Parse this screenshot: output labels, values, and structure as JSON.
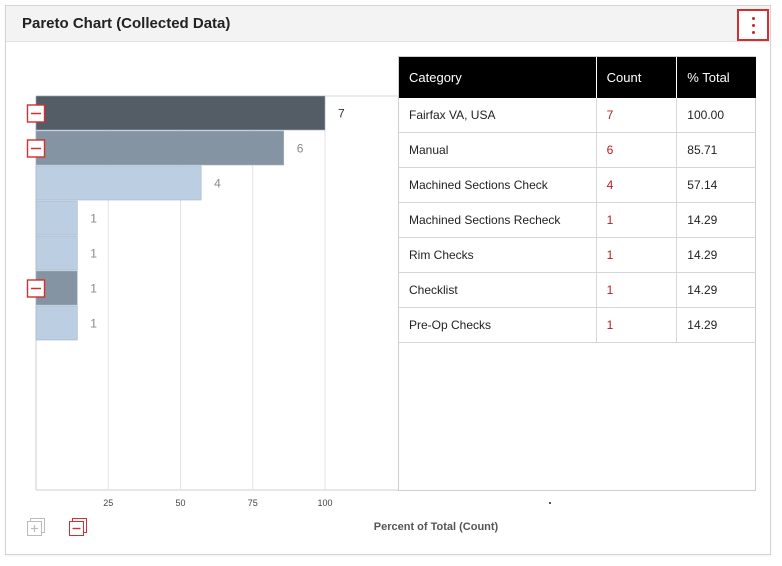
{
  "header": {
    "title": "Pareto Chart (Collected Data)",
    "menu_icon": "kebab-menu-icon"
  },
  "table": {
    "columns": [
      "Category",
      "Count",
      "% Total"
    ],
    "rows": [
      {
        "category": "Fairfax VA, USA",
        "count": "7",
        "pct": "100.00"
      },
      {
        "category": "Manual",
        "count": "6",
        "pct": "85.71"
      },
      {
        "category": "Machined Sections Check",
        "count": "4",
        "pct": "57.14"
      },
      {
        "category": "Machined Sections Recheck",
        "count": "1",
        "pct": "14.29"
      },
      {
        "category": "Rim Checks",
        "count": "1",
        "pct": "14.29"
      },
      {
        "category": "Checklist",
        "count": "1",
        "pct": "14.29"
      },
      {
        "category": "Pre-Op Checks",
        "count": "1",
        "pct": "14.29"
      }
    ]
  },
  "footer": {
    "expand_all_icon": "expand-all-icon",
    "collapse_all_icon": "collapse-all-icon"
  },
  "colors": {
    "bar_dark": "#545c66",
    "bar_mid": "#8494a2",
    "bar_light": "#bccfe2",
    "accent_red": "#d32f2f"
  },
  "chart_data": {
    "type": "bar",
    "orientation": "horizontal",
    "categories": [
      "Fairfax VA, USA",
      "Manual",
      "Machined Sections Check",
      "Machined Sections Recheck",
      "Rim Checks",
      "Checklist",
      "Pre-Op Checks"
    ],
    "values": [
      7,
      6,
      4,
      1,
      1,
      1,
      1
    ],
    "value_labels": [
      "7",
      "6",
      "4",
      "1",
      "1",
      "1",
      "1"
    ],
    "bar_colors": [
      "#545c66",
      "#8494a2",
      "#bccfe2",
      "#bccfe2",
      "#bccfe2",
      "#8494a2",
      "#bccfe2"
    ],
    "collapsible_rows": [
      0,
      1,
      5
    ],
    "xlabel": "Percent of Total (Count)",
    "xlim": [
      0,
      100
    ],
    "xticks": [
      25,
      50,
      75,
      100
    ],
    "grid": true
  }
}
